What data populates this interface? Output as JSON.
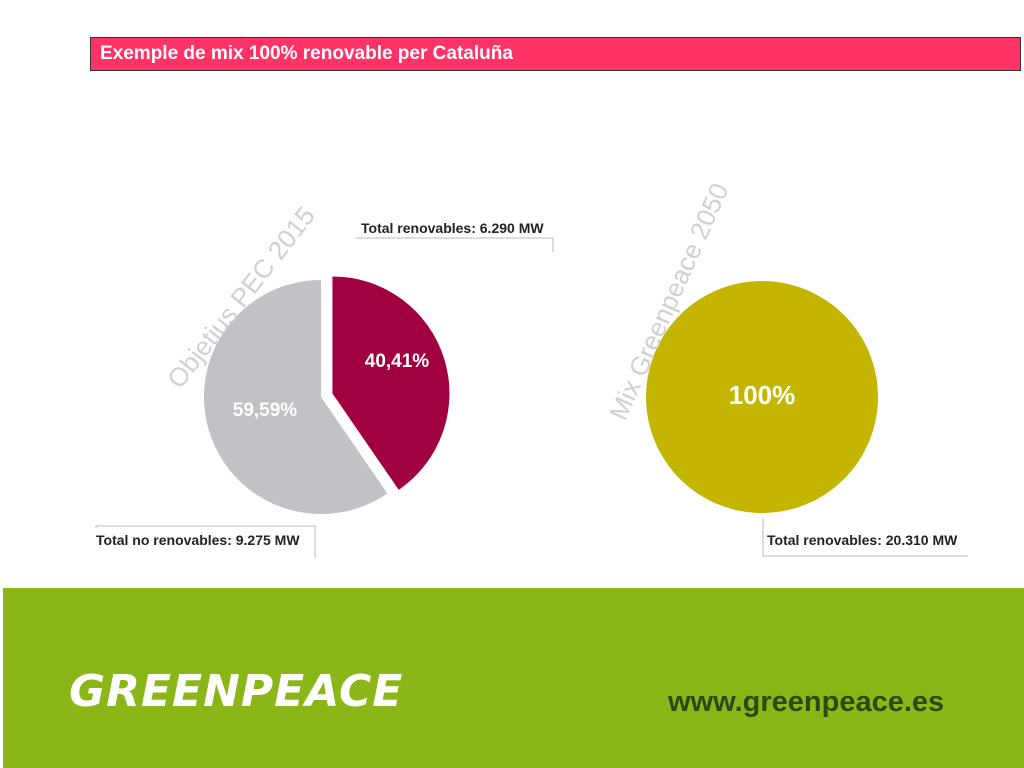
{
  "title": "Exemple de mix 100% renovable per Cataluña",
  "colors": {
    "title_bar": "#ff3366",
    "renewable": "#a0003f",
    "non_renewable": "#c1c2c6",
    "greenpeace_mix": "#c4b600",
    "footer": "#8ab717"
  },
  "chart_data": [
    {
      "type": "pie",
      "title": "Objetius PEC 2015",
      "slices": [
        {
          "label": "40,41%",
          "value": 40.41,
          "color": "#a0003f",
          "exploded": true
        },
        {
          "label": "59,59%",
          "value": 59.59,
          "color": "#c1c2c6",
          "exploded": false
        }
      ],
      "annotations": [
        "Total renovables: 6.290 MW",
        "Total no renovables: 9.275 MW"
      ]
    },
    {
      "type": "pie",
      "title": "Mix Greenpeace 2050",
      "slices": [
        {
          "label": "100%",
          "value": 100,
          "color": "#c4b600",
          "exploded": false
        }
      ],
      "annotations": [
        "Total renovables: 20.310 MW"
      ]
    }
  ],
  "footer": {
    "logo": "GREENPEACE",
    "url": "www.greenpeace.es"
  }
}
